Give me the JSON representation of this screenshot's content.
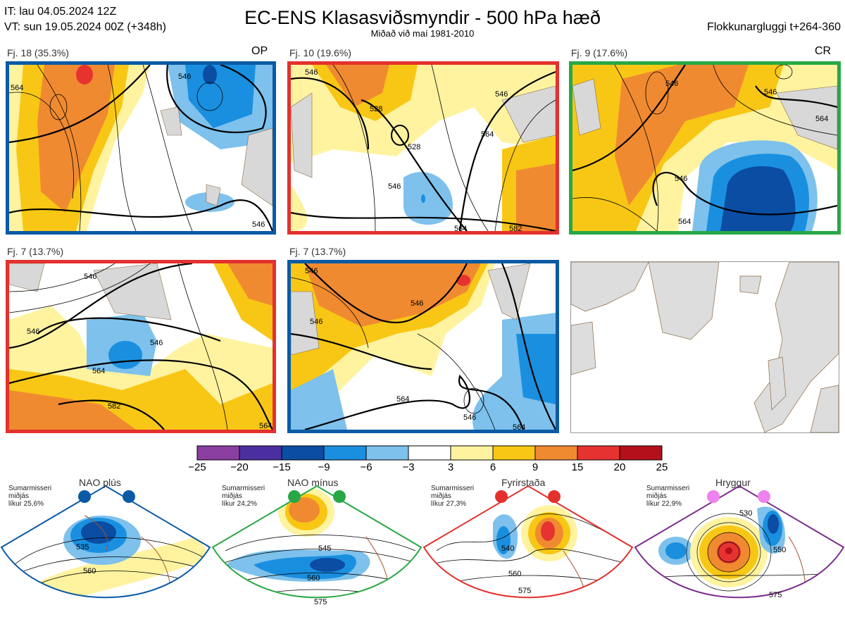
{
  "header": {
    "it_line": "IT: lau 04.05.2024 12Z",
    "vt_line": "VT: sun 19.05.2024 00Z  (+348h)",
    "title": "EC-ENS Klasasviðsmyndir - 500 hPa hæð",
    "subtitle": "Miðað við maí 1981-2010",
    "window": "Flokkunargluggi t+264-360"
  },
  "panels": [
    {
      "caption": "Fj. 18 (35.3%)",
      "tag": "OP",
      "frame_color": "#0b5aa5",
      "contours": [
        "564",
        "546",
        "546"
      ]
    },
    {
      "caption": "Fj. 10 (19.6%)",
      "tag": "",
      "frame_color": "#e3312d",
      "contours": [
        "546",
        "528",
        "528",
        "546",
        "546",
        "564",
        "564",
        "582"
      ]
    },
    {
      "caption": "Fj. 9 (17.6%)",
      "tag": "CR",
      "frame_color": "#27a845",
      "contours": [
        "546",
        "546",
        "564",
        "546",
        "564"
      ]
    },
    {
      "caption": "Fj. 7 (13.7%)",
      "tag": "",
      "frame_color": "#e3312d",
      "contours": [
        "546",
        "546",
        "546",
        "564",
        "582",
        "564"
      ]
    },
    {
      "caption": "Fj. 7 (13.7%)",
      "tag": "",
      "frame_color": "#0b5aa5",
      "contours": [
        "546",
        "546",
        "546",
        "564",
        "546",
        "564"
      ]
    }
  ],
  "colorbar": {
    "labels": [
      "−25",
      "−20",
      "−15",
      "−9",
      "−6",
      "−3",
      "3",
      "6",
      "9",
      "15",
      "20",
      "25"
    ],
    "colors": [
      "#8a3ea0",
      "#4b2fa0",
      "#0a4da3",
      "#1a8fe0",
      "#7dc1ec",
      "#ffffff",
      "#fff3a0",
      "#f8c715",
      "#f08a30",
      "#e63330",
      "#b3101c"
    ]
  },
  "regimes": [
    {
      "name": "NAO plús",
      "season": "Sumarmisseri",
      "centre": "miðjás",
      "prob": "líkur 25,6%",
      "color": "#0b5aa5",
      "contours": [
        "535",
        "560"
      ]
    },
    {
      "name": "NAO mínus",
      "season": "Sumarmisseri",
      "centre": "miðjás",
      "prob": "líkur 24,2%",
      "color": "#27a845",
      "contours": [
        "545",
        "560",
        "575"
      ]
    },
    {
      "name": "Fyrirstaða",
      "season": "Sumarmisseri",
      "centre": "miðjás",
      "prob": "líkur 27,3%",
      "color": "#e3312d",
      "contours": [
        "540",
        "560",
        "575"
      ]
    },
    {
      "name": "Hryggur",
      "season": "Sumarmisseri",
      "centre": "miðjás",
      "prob": "líkur 22,9%",
      "color": "#7c2d8c",
      "contours": [
        "530",
        "550",
        "575"
      ]
    }
  ]
}
